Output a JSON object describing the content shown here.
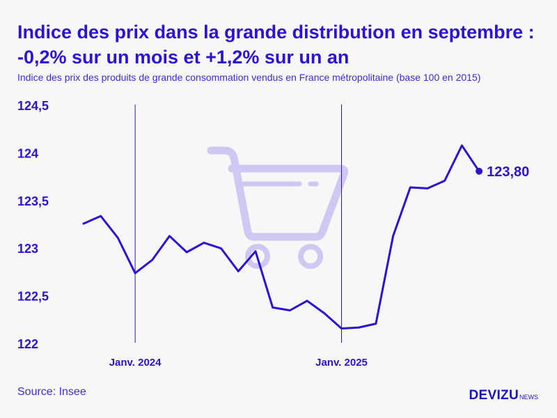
{
  "title": "Indice des prix dans la grande distribution en septembre : -0,2% sur un mois et +1,2% sur un an",
  "subtitle": "Indice des prix des produits de grande consommation vendus en France métropolitaine (base 100 en 2015)",
  "source": "Source: Insee",
  "brand": {
    "name": "DEVIZU",
    "suffix": "NEWS"
  },
  "colors": {
    "accent": "#2a12d6",
    "cart": "#cfc8f2",
    "background": "#f7f7f7"
  },
  "icons": {
    "watermark": "shopping-cart-icon"
  },
  "chart_data": {
    "type": "line",
    "title": "",
    "xlabel": "",
    "ylabel": "",
    "ylim": [
      122,
      124.5
    ],
    "yticks": [
      122,
      122.5,
      123,
      123.5,
      124,
      124.5
    ],
    "ytick_labels": [
      "122",
      "122,5",
      "123",
      "123,5",
      "124",
      "124,5"
    ],
    "xtick_labels": [
      {
        "label": "Janv. 2024",
        "index": 3
      },
      {
        "label": "Janv. 2025",
        "index": 15
      }
    ],
    "x": [
      "2023-10",
      "2023-11",
      "2023-12",
      "2024-01",
      "2024-02",
      "2024-03",
      "2024-04",
      "2024-05",
      "2024-06",
      "2024-07",
      "2024-08",
      "2024-09",
      "2024-10",
      "2024-11",
      "2024-12",
      "2025-01",
      "2025-02",
      "2025-03",
      "2025-04",
      "2025-05",
      "2025-06",
      "2025-07",
      "2025-08",
      "2025-09"
    ],
    "series": [
      {
        "values": [
          123.25,
          123.33,
          123.1,
          122.73,
          122.87,
          123.12,
          122.95,
          123.05,
          122.99,
          122.75,
          122.96,
          122.37,
          122.34,
          122.44,
          122.31,
          122.15,
          122.16,
          122.2,
          123.12,
          123.63,
          123.62,
          123.7,
          124.07,
          123.8
        ]
      }
    ],
    "last_value_label": "123,80",
    "grid": false
  }
}
